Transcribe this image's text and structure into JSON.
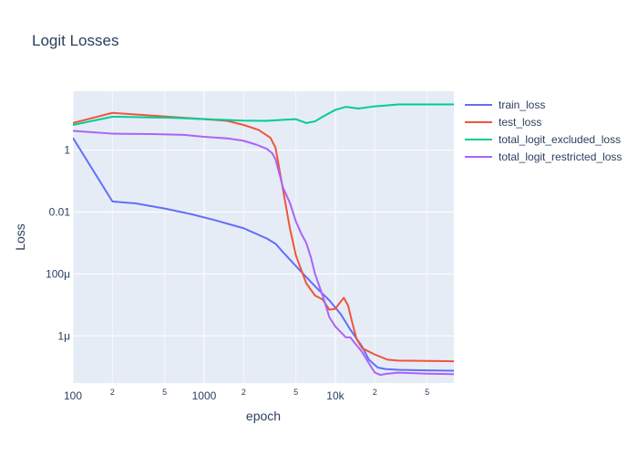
{
  "chart_data": {
    "type": "line",
    "title": "Logit Losses",
    "xlabel": "epoch",
    "ylabel": "Loss",
    "x_scale": "log",
    "y_scale": "log",
    "xlim": [
      100,
      80000
    ],
    "ylim": [
      3e-08,
      80
    ],
    "x_major_ticks": [
      {
        "value": 100,
        "label": "100"
      },
      {
        "value": 1000,
        "label": "1000"
      },
      {
        "value": 10000,
        "label": "10k"
      }
    ],
    "x_minor_ticks": [
      {
        "value": 200,
        "label": "2"
      },
      {
        "value": 500,
        "label": "5"
      },
      {
        "value": 2000,
        "label": "2"
      },
      {
        "value": 5000,
        "label": "5"
      },
      {
        "value": 20000,
        "label": "2"
      },
      {
        "value": 50000,
        "label": "5"
      }
    ],
    "y_ticks": [
      {
        "value": 1,
        "label": "1"
      },
      {
        "value": 0.01,
        "label": "0.01"
      },
      {
        "value": 0.0001,
        "label": "100μ"
      },
      {
        "value": 1e-06,
        "label": "1μ"
      }
    ],
    "grid": true,
    "legend_position": "right",
    "series": [
      {
        "name": "train_loss",
        "color": "#636efa",
        "points": [
          [
            100,
            2.5
          ],
          [
            200,
            0.022
          ],
          [
            300,
            0.019
          ],
          [
            500,
            0.013
          ],
          [
            800,
            0.0085
          ],
          [
            1200,
            0.0055
          ],
          [
            2000,
            0.003
          ],
          [
            3000,
            0.0014
          ],
          [
            3500,
            0.00095
          ],
          [
            4000,
            0.0005
          ],
          [
            5000,
            0.00018
          ],
          [
            7000,
            4e-05
          ],
          [
            9000,
            1.4e-05
          ],
          [
            11000,
            5e-06
          ],
          [
            13000,
            1.6e-06
          ],
          [
            16000,
            4.5e-07
          ],
          [
            18000,
            1.7e-07
          ],
          [
            21000,
            9.5e-08
          ],
          [
            24000,
            8.5e-08
          ],
          [
            30000,
            8e-08
          ],
          [
            50000,
            7.7e-08
          ],
          [
            80000,
            7.5e-08
          ]
        ]
      },
      {
        "name": "test_loss",
        "color": "#ef553b",
        "points": [
          [
            100,
            7.5
          ],
          [
            200,
            16
          ],
          [
            400,
            13
          ],
          [
            1000,
            10
          ],
          [
            1500,
            8.8
          ],
          [
            2000,
            6.5
          ],
          [
            2600,
            4.5
          ],
          [
            3200,
            2.5
          ],
          [
            3500,
            1.2
          ],
          [
            4000,
            0.05
          ],
          [
            4500,
            0.003
          ],
          [
            5000,
            0.0004
          ],
          [
            6000,
            5e-05
          ],
          [
            7000,
            2e-05
          ],
          [
            8000,
            1.5e-05
          ],
          [
            9000,
            7e-06
          ],
          [
            10000,
            7.5e-06
          ],
          [
            11000,
            1.3e-05
          ],
          [
            11600,
            1.7e-05
          ],
          [
            12500,
            9.5e-06
          ],
          [
            13500,
            2.5e-06
          ],
          [
            14500,
            8e-07
          ],
          [
            16000,
            4e-07
          ],
          [
            20000,
            2.5e-07
          ],
          [
            25000,
            1.7e-07
          ],
          [
            30000,
            1.6e-07
          ],
          [
            50000,
            1.55e-07
          ],
          [
            80000,
            1.52e-07
          ]
        ]
      },
      {
        "name": "total_logit_excluded_loss",
        "color": "#00cc96",
        "points": [
          [
            100,
            6.5
          ],
          [
            200,
            12
          ],
          [
            600,
            11
          ],
          [
            1000,
            10
          ],
          [
            2000,
            9
          ],
          [
            3000,
            8.8
          ],
          [
            4000,
            9.5
          ],
          [
            5000,
            10
          ],
          [
            6000,
            7.5
          ],
          [
            7000,
            8.5
          ],
          [
            8000,
            12
          ],
          [
            10000,
            20
          ],
          [
            12000,
            25
          ],
          [
            15000,
            22
          ],
          [
            20000,
            26
          ],
          [
            25000,
            28
          ],
          [
            30000,
            30
          ],
          [
            50000,
            30
          ],
          [
            80000,
            30
          ]
        ]
      },
      {
        "name": "total_logit_restricted_loss",
        "color": "#ab63fa",
        "points": [
          [
            100,
            4.2
          ],
          [
            200,
            3.4
          ],
          [
            400,
            3.3
          ],
          [
            700,
            3.1
          ],
          [
            1000,
            2.7
          ],
          [
            1500,
            2.4
          ],
          [
            2000,
            2
          ],
          [
            2500,
            1.5
          ],
          [
            3000,
            1.1
          ],
          [
            3300,
            0.8
          ],
          [
            3500,
            0.5
          ],
          [
            4000,
            0.06
          ],
          [
            4500,
            0.02
          ],
          [
            5000,
            0.005
          ],
          [
            5500,
            0.002
          ],
          [
            6000,
            0.001
          ],
          [
            6500,
            0.00035
          ],
          [
            7000,
            0.0001
          ],
          [
            8000,
            2e-05
          ],
          [
            9000,
            4e-06
          ],
          [
            10000,
            2e-06
          ],
          [
            12000,
            9e-07
          ],
          [
            13000,
            9e-07
          ],
          [
            14000,
            6e-07
          ],
          [
            16000,
            3e-07
          ],
          [
            18000,
            1.3e-07
          ],
          [
            20000,
            6.5e-08
          ],
          [
            22000,
            5.5e-08
          ],
          [
            25000,
            6e-08
          ],
          [
            30000,
            6.5e-08
          ],
          [
            50000,
            6e-08
          ],
          [
            80000,
            5.8e-08
          ]
        ]
      }
    ]
  }
}
